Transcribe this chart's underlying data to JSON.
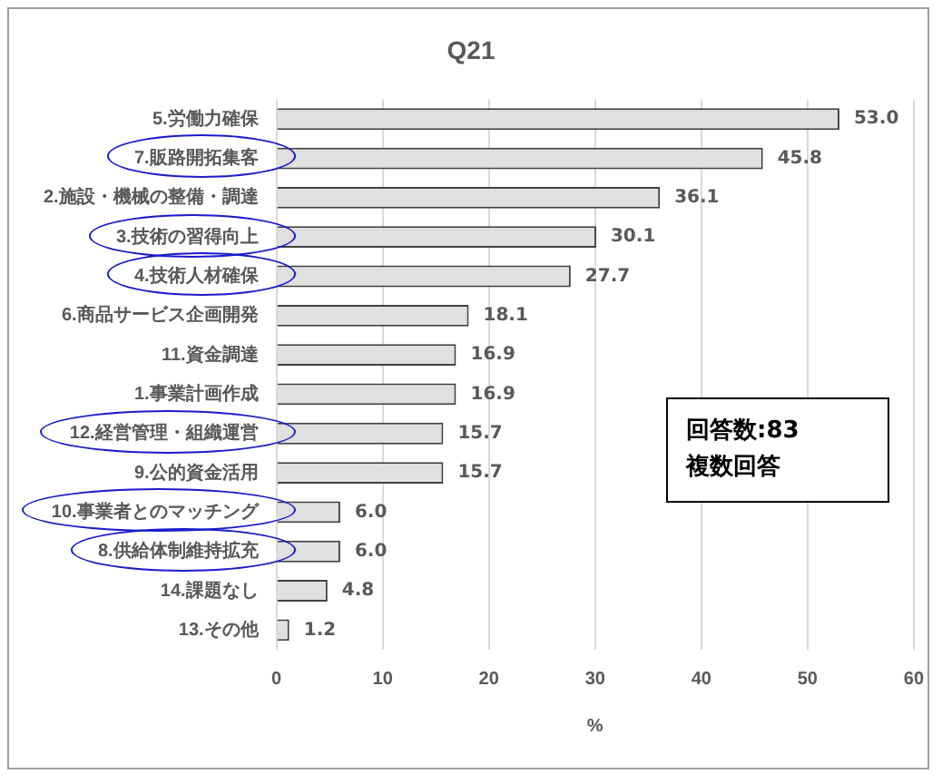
{
  "chart_data": {
    "type": "bar",
    "orientation": "horizontal",
    "title": "Q21",
    "xlabel": "%",
    "categories": [
      "5.労働力確保",
      "7.販路開拓集客",
      "2.施設・機械の整備・調達",
      "3.技術の習得向上",
      "4.技術人材確保",
      "6.商品サービス企画開発",
      "11.資金調達",
      "1.事業計画作成",
      "12.経営管理・組織運営",
      "9.公的資金活用",
      "10.事業者とのマッチング",
      "8.供給体制維持拡充",
      "14.課題なし",
      "13.その他"
    ],
    "values": [
      53.0,
      45.8,
      36.1,
      30.1,
      27.7,
      18.1,
      16.9,
      16.9,
      15.7,
      15.7,
      6.0,
      6.0,
      4.8,
      1.2
    ],
    "value_labels": [
      "53.0",
      "45.8",
      "36.1",
      "30.1",
      "27.7",
      "18.1",
      "16.9",
      "16.9",
      "15.7",
      "15.7",
      "6.0",
      "6.0",
      "4.8",
      "1.2"
    ],
    "color": "#e0e0e0",
    "xlim": [
      0,
      60
    ],
    "xticks": [
      0,
      10,
      20,
      30,
      40,
      50,
      60
    ],
    "grid": "x",
    "legend": false,
    "annotations": [
      "回答数:83",
      "複数回答"
    ]
  }
}
